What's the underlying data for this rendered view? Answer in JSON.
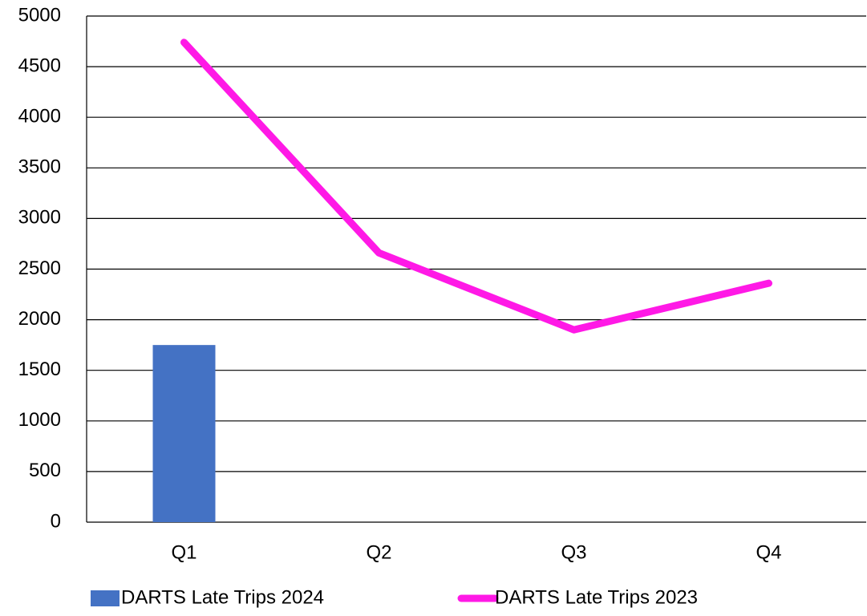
{
  "chart_data": {
    "type": "combo",
    "categories": [
      "Q1",
      "Q2",
      "Q3",
      "Q4"
    ],
    "series": [
      {
        "name": "DARTS Late Trips 2024",
        "type": "bar",
        "color": "#4472c4",
        "values": [
          1750,
          null,
          null,
          null
        ]
      },
      {
        "name": "DARTS Late Trips 2023",
        "type": "line",
        "color": "#ff19e6",
        "values": [
          4740,
          2660,
          1900,
          2360
        ]
      }
    ],
    "ylim": [
      0,
      5000
    ],
    "yticks": [
      0,
      500,
      1000,
      1500,
      2000,
      2500,
      3000,
      3500,
      4000,
      4500,
      5000
    ],
    "grid": true,
    "legend": "bottom"
  }
}
